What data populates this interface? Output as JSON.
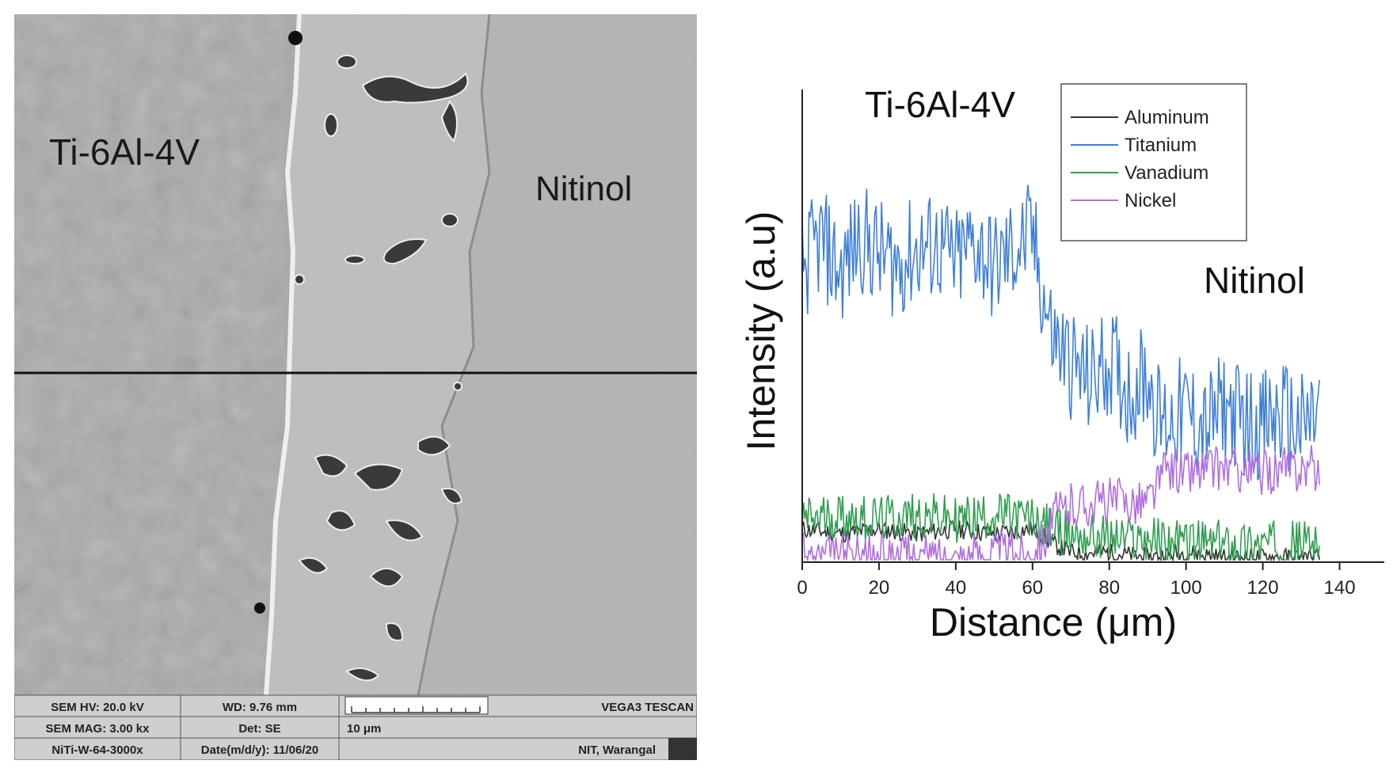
{
  "sem": {
    "labels": {
      "left": "Ti-6Al-4V",
      "right": "Nitinol"
    },
    "info": {
      "hv": "SEM HV: 20.0 kV",
      "wd": "WD: 9.76 mm",
      "brand": "VEGA3 TESCAN",
      "mag": "SEM MAG: 3.00 kx",
      "det": "Det: SE",
      "scale": "10 μm",
      "file": "NiTi-W-64-3000x",
      "date": "Date(m/d/y): 11/06/20",
      "site": "NIT, Warangal"
    }
  },
  "chart_data": {
    "type": "line",
    "xlabel": "Distance (μm)",
    "ylabel": "Intensity (a.u)",
    "xlim": [
      0,
      150
    ],
    "ylim": [
      0,
      1
    ],
    "xticks": [
      "0",
      "20",
      "40",
      "60",
      "80",
      "100",
      "120",
      "140"
    ],
    "annotations": [
      "Ti-6Al-4V",
      "Nitinol"
    ],
    "legend_position": "top-right",
    "series": [
      {
        "name": "Aluminum",
        "color": "#333333",
        "x": [
          0,
          10,
          20,
          30,
          40,
          50,
          60,
          65,
          70,
          80,
          90,
          100,
          110,
          120,
          130,
          135
        ],
        "y": [
          0.07,
          0.06,
          0.07,
          0.06,
          0.07,
          0.06,
          0.07,
          0.04,
          0.02,
          0.02,
          0.01,
          0.02,
          0.01,
          0.01,
          0.01,
          0.01
        ]
      },
      {
        "name": "Titanium",
        "color": "#3f7fd8",
        "x": [
          0,
          5,
          10,
          15,
          20,
          25,
          30,
          35,
          40,
          45,
          50,
          55,
          60,
          62,
          65,
          70,
          75,
          80,
          85,
          90,
          93,
          95,
          100,
          105,
          110,
          115,
          120,
          125,
          130,
          135
        ],
        "y": [
          0.62,
          0.68,
          0.61,
          0.69,
          0.65,
          0.63,
          0.66,
          0.67,
          0.63,
          0.68,
          0.62,
          0.66,
          0.69,
          0.6,
          0.48,
          0.42,
          0.38,
          0.43,
          0.36,
          0.4,
          0.3,
          0.3,
          0.32,
          0.28,
          0.33,
          0.3,
          0.29,
          0.31,
          0.28,
          0.32
        ]
      },
      {
        "name": "Vanadium",
        "color": "#2f9e4f",
        "x": [
          0,
          10,
          20,
          30,
          40,
          50,
          60,
          65,
          70,
          80,
          90,
          100,
          110,
          120,
          130,
          135
        ],
        "y": [
          0.09,
          0.1,
          0.09,
          0.1,
          0.09,
          0.1,
          0.09,
          0.07,
          0.06,
          0.05,
          0.05,
          0.04,
          0.04,
          0.04,
          0.04,
          0.05
        ]
      },
      {
        "name": "Nickel",
        "color": "#b06ee0",
        "x": [
          0,
          10,
          20,
          30,
          40,
          50,
          60,
          63,
          66,
          70,
          80,
          90,
          93,
          95,
          100,
          110,
          120,
          130,
          135
        ],
        "y": [
          0.01,
          0.01,
          0.01,
          0.01,
          0.01,
          0.02,
          0.02,
          0.05,
          0.1,
          0.12,
          0.13,
          0.13,
          0.17,
          0.2,
          0.19,
          0.2,
          0.19,
          0.2,
          0.2
        ]
      }
    ]
  }
}
